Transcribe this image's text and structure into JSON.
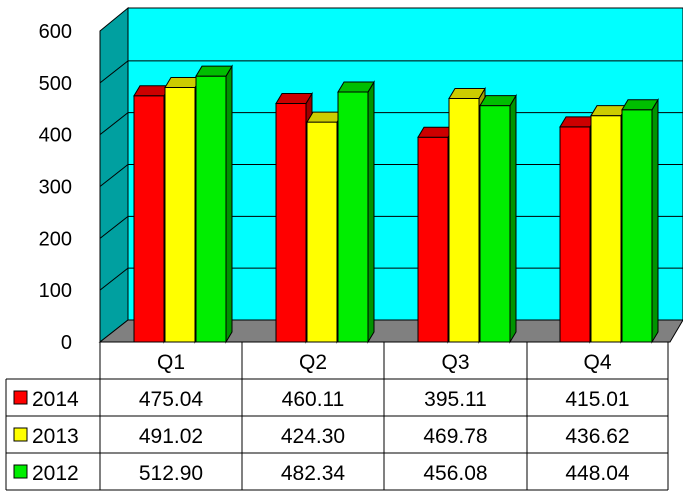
{
  "chart_data": {
    "type": "bar",
    "categories": [
      "Q1",
      "Q2",
      "Q3",
      "Q4"
    ],
    "series": [
      {
        "name": "2014",
        "color": "#ff0000",
        "values": [
          475.04,
          460.11,
          395.11,
          415.01
        ],
        "labels": [
          "475.04",
          "460.11",
          "395.11",
          "415.01"
        ]
      },
      {
        "name": "2013",
        "color": "#ffff00",
        "values": [
          491.02,
          424.3,
          469.78,
          436.62
        ],
        "labels": [
          "491.02",
          "424.30",
          "469.78",
          "436.62"
        ]
      },
      {
        "name": "2012",
        "color": "#00ee00",
        "values": [
          512.9,
          482.34,
          456.08,
          448.04
        ],
        "labels": [
          "512.90",
          "482.34",
          "456.08",
          "448.04"
        ]
      }
    ],
    "yticks": [
      "0",
      "100",
      "200",
      "300",
      "400",
      "500",
      "600"
    ],
    "ylim": [
      0,
      600
    ],
    "grid": true,
    "style": "3d-clustered-bar",
    "wall_color": "#00ffff",
    "floor_color": "#808080",
    "legend": "data-table-below"
  }
}
